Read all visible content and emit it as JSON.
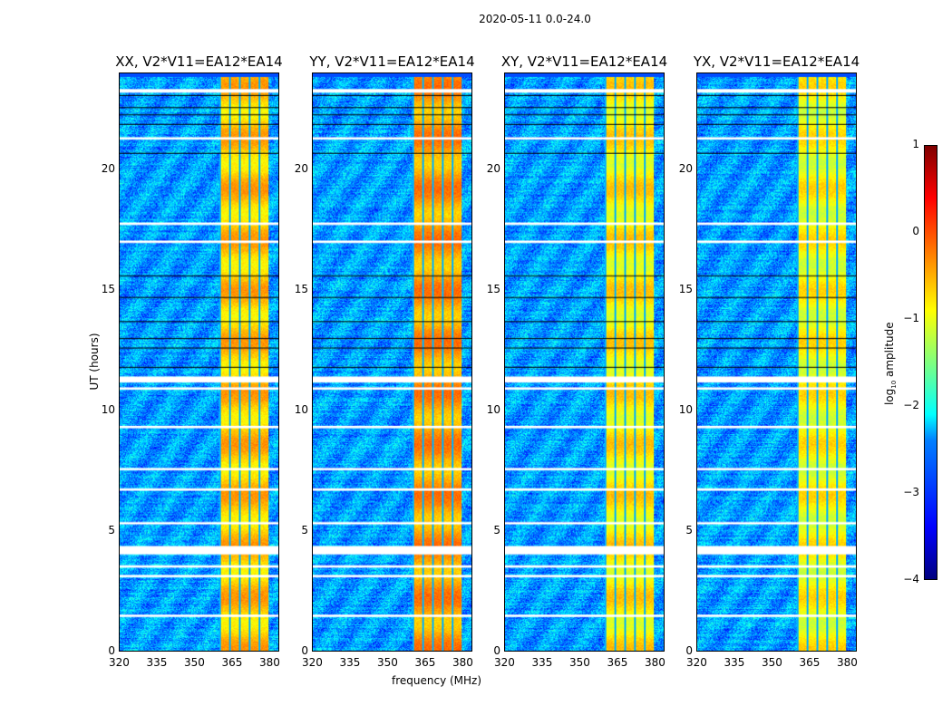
{
  "chart_data": {
    "type": "heatmap",
    "title": "2020-05-11 0.0-24.0",
    "xlabel": "frequency (MHz)",
    "ylabel": "UT (hours)",
    "xlim": [
      320,
      384
    ],
    "ylim": [
      0,
      24
    ],
    "xticks": [
      "320",
      "335",
      "350",
      "365",
      "380"
    ],
    "xtick_values": [
      320,
      335,
      350,
      365,
      380
    ],
    "yticks": [
      "0",
      "5",
      "10",
      "15",
      "20"
    ],
    "ytick_values": [
      0,
      5,
      10,
      15,
      20
    ],
    "panels": [
      {
        "title": "XX, V2*V11=EA12*EA14",
        "band_level": -0.6
      },
      {
        "title": "YY, V2*V11=EA12*EA14",
        "band_level": -0.4
      },
      {
        "title": "XY, V2*V11=EA12*EA14",
        "band_level": -0.8
      },
      {
        "title": "YX, V2*V11=EA12*EA14",
        "band_level": -0.9
      }
    ],
    "background_level": -2.6,
    "rfi_band_mhz": [
      360,
      380
    ],
    "flagged_hours": [
      [
        23.2,
        23.35
      ],
      [
        21.25,
        21.35
      ],
      [
        17.7,
        17.8
      ],
      [
        16.95,
        17.05
      ],
      [
        11.15,
        11.4
      ],
      [
        10.85,
        10.95
      ],
      [
        9.25,
        9.35
      ],
      [
        7.5,
        7.6
      ],
      [
        6.65,
        6.75
      ],
      [
        5.25,
        5.35
      ],
      [
        4.0,
        4.35
      ],
      [
        3.45,
        3.55
      ],
      [
        3.05,
        3.15
      ],
      [
        1.4,
        1.5
      ]
    ],
    "colorbar": {
      "label": "log10 amplitude",
      "label_main": "log",
      "label_sub": "10",
      "label_rest": " amplitude",
      "range": [
        -4,
        1
      ],
      "ticks": [
        "1",
        "0",
        "−1",
        "−2",
        "−3",
        "−4"
      ],
      "tick_values": [
        1,
        0,
        -1,
        -2,
        -3,
        -4
      ]
    }
  }
}
